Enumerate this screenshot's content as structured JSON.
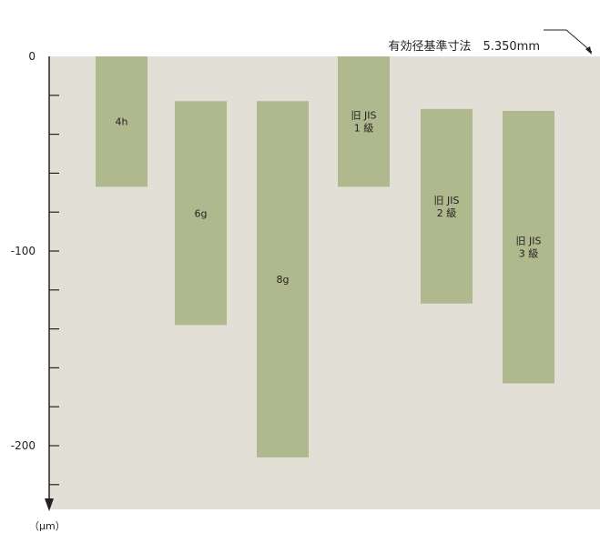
{
  "reference_label": "有効径基準寸法　5.350mm",
  "unit_label": "（μm）",
  "colors": {
    "background": "#e2e0d6",
    "bar": "#b0b98d",
    "axis": "#222222"
  },
  "chart_data": {
    "type": "bar",
    "subtype": "floating-range",
    "categories": [
      "4h",
      "6g",
      "8g",
      "旧 JIS\n1 級",
      "旧 JIS\n2 級",
      "旧 JIS\n3 級"
    ],
    "ranges": [
      {
        "label": "4h",
        "upper": 0,
        "lower": -67
      },
      {
        "label": "6g",
        "upper": -23,
        "lower": -138
      },
      {
        "label": "8g",
        "upper": -23,
        "lower": -206
      },
      {
        "label": "旧 JIS\n1 級",
        "upper": 0,
        "lower": -67
      },
      {
        "label": "旧 JIS\n2 級",
        "upper": -27,
        "lower": -127
      },
      {
        "label": "旧 JIS\n3 級",
        "upper": -28,
        "lower": -168
      }
    ],
    "ylim": [
      -230,
      0
    ],
    "y_tick_labels": [
      0,
      -100,
      -200
    ],
    "minor_tick_step": 20,
    "grid": false,
    "legend": "none"
  }
}
